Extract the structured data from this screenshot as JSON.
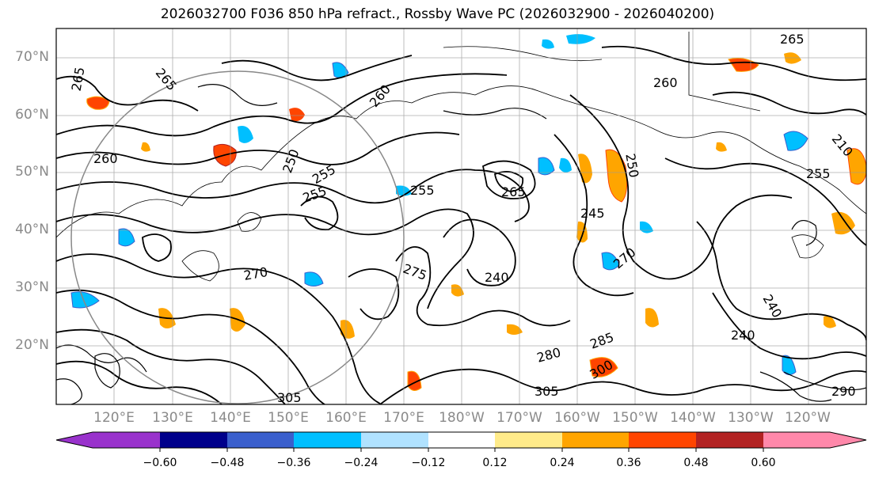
{
  "title": "2026032700 F036 850 hPa refract., Rossby Wave PC (2026032900 - 2026040200)",
  "map": {
    "lat_labels": [
      "70°N",
      "60°N",
      "50°N",
      "40°N",
      "30°N",
      "20°N"
    ],
    "lon_labels": [
      "120°E",
      "130°E",
      "140°E",
      "150°E",
      "160°E",
      "170°E",
      "180°W",
      "170°W",
      "160°W",
      "150°W",
      "140°W",
      "130°W",
      "120°W"
    ],
    "contour_labels": [
      "265",
      "265",
      "260",
      "260",
      "255",
      "255",
      "255",
      "250",
      "245",
      "240",
      "240",
      "240",
      "275",
      "270",
      "285",
      "305",
      "305",
      "300",
      "290",
      "280",
      "270",
      "265",
      "260",
      "255",
      "250",
      "210",
      "265"
    ]
  },
  "colorbar": {
    "ticks": [
      "−0.60",
      "−0.48",
      "−0.36",
      "−0.24",
      "−0.12",
      "0.12",
      "0.24",
      "0.36",
      "0.48",
      "0.60"
    ],
    "colors": [
      "#9932cc",
      "#00008b",
      "#3a5fcd",
      "#00bfff",
      "#b0e2ff",
      "#ffffff",
      "#ffeb8a",
      "#ffa500",
      "#ff4500",
      "#b22222",
      "#ff88aa"
    ]
  }
}
